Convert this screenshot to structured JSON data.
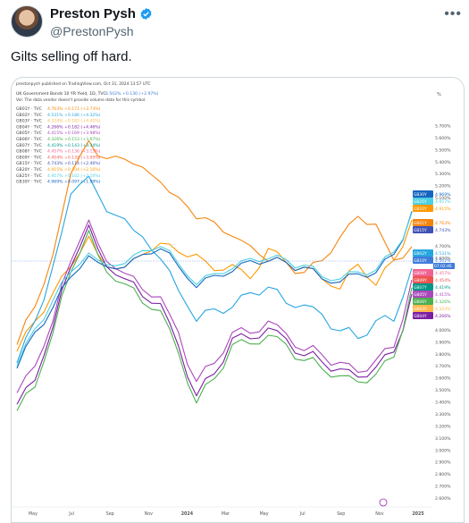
{
  "tweet": {
    "display_name": "Preston Pysh",
    "handle": "@PrestonPysh",
    "text": "Gilts selling off hard."
  },
  "icons": {
    "verified": "verified-badge-icon",
    "more": "more-options-icon",
    "avatar": "profile-avatar"
  },
  "colors": {
    "verified": "#1d9bf0",
    "text": "#0f1419",
    "secondary": "#536471"
  },
  "chart_header": {
    "published": "prestonpysh published on TradingView.com, Oct 31, 2024 13:57 UTC",
    "title": "UK Government Bonds 10 YR Yield, 1D, TVC",
    "title_value": "4.502% +0.130 (+2.97%)",
    "vol_note": "Vol: The data vendor doesn't provide volume data for this symbol."
  },
  "chart_data": {
    "type": "line",
    "ylabel": "%",
    "ylim": [
      2.6,
      5.8
    ],
    "yticks": [
      "5.700%",
      "5.600%",
      "5.500%",
      "5.400%",
      "5.300%",
      "5.200%",
      "5.100%",
      "4.700%",
      "4.600%",
      "4.000%",
      "3.900%",
      "3.800%",
      "3.700%",
      "3.600%",
      "3.500%",
      "3.400%",
      "3.300%",
      "3.200%",
      "3.100%",
      "3.000%",
      "2.900%",
      "2.800%",
      "2.700%",
      "2.600%"
    ],
    "xticks": [
      "May",
      "Jul",
      "Sep",
      "Nov",
      "2024",
      "Mar",
      "May",
      "Jul",
      "Sep",
      "Nov",
      "2025"
    ],
    "legend": [
      {
        "name": "GB01Y · TVC",
        "value": "4.763%  +0.171 (+3.73%)",
        "color": "#f5840c"
      },
      {
        "name": "GB02Y · TVC",
        "value": "4.531%  +0.186 (+4.32%)",
        "color": "#26a6e0"
      },
      {
        "name": "GB03Y · TVC",
        "value": "4.324%  +0.183 (+4.42%)",
        "color": "#ffb74d"
      },
      {
        "name": "GB04Y · TVC",
        "value": "4.266%  +0.182 (+4.46%)",
        "color": "#7b1fa2"
      },
      {
        "name": "GB05Y · TVC",
        "value": "4.415%  +0.169 (+3.98%)",
        "color": "#ab47bc"
      },
      {
        "name": "GB06Y · TVC",
        "value": "4.326%  +0.153 (+3.67%)",
        "color": "#4caf50"
      },
      {
        "name": "GB07Y · TVC",
        "value": "4.419%  +0.143 (+3.34%)",
        "color": "#009688"
      },
      {
        "name": "GB08Y · TVC",
        "value": "4.457%  +0.136 (+3.15%)",
        "color": "#f06292"
      },
      {
        "name": "GB09Y · TVC",
        "value": "4.454%  +0.132 (+3.05%)",
        "color": "#ef5350"
      },
      {
        "name": "GB15Y · TVC",
        "value": "4.743%  +0.114 (+2.46%)",
        "color": "#3f51b5"
      },
      {
        "name": "GB20Y · TVC",
        "value": "4.915%  +0.104 (+2.16%)",
        "color": "#ff9800"
      },
      {
        "name": "GB25Y · TVC",
        "value": "4.957%  +0.102 (+2.10%)",
        "color": "#4dd0e1"
      },
      {
        "name": "GB30Y · TVC",
        "value": "4.969%  +0.097 (+1.99%)",
        "color": "#1565c0"
      }
    ],
    "price_tags": [
      {
        "label": "GB30Y",
        "value": "4.969%",
        "color": "#1565c0"
      },
      {
        "label": "GB25Y",
        "value": "4.957%",
        "color": "#4dd0e1"
      },
      {
        "label": "GB20Y",
        "value": "4.915%",
        "color": "#ff9800"
      },
      {
        "label": "GB01Y",
        "value": "4.763%",
        "color": "#f5840c"
      },
      {
        "label": "GB15Y",
        "value": "4.743%",
        "color": "#3f51b5"
      },
      {
        "label": "GB02Y",
        "value": "4.531%",
        "color": "#26a6e0"
      },
      {
        "label": "GB10Y",
        "value": "4.502%",
        "color": "#3f7bd9"
      },
      {
        "label": "GB08Y",
        "value": "4.457%",
        "color": "#f06292"
      },
      {
        "label": "GB09Y",
        "value": "4.454%",
        "color": "#ef5350"
      },
      {
        "label": "GB07Y",
        "value": "4.419%",
        "color": "#009688"
      },
      {
        "label": "GB05Y",
        "value": "4.415%",
        "color": "#ab47bc"
      },
      {
        "label": "GB06Y",
        "value": "4.326%",
        "color": "#4caf50"
      },
      {
        "label": "GB03Y",
        "value": "4.324%",
        "color": "#ffb74d"
      },
      {
        "label": "GB04Y",
        "value": "4.266%",
        "color": "#7b1fa2"
      }
    ],
    "price_tag_timer": "07:02:46",
    "series": [
      {
        "name": "GB01Y",
        "color": "#f5840c",
        "values": [
          3.9,
          4.2,
          4.6,
          5.3,
          5.55,
          5.4,
          5.45,
          5.35,
          5.2,
          5.1,
          4.95,
          4.9,
          4.75,
          4.7,
          4.6,
          4.55,
          4.45,
          4.6,
          4.75,
          4.95,
          4.85,
          4.55,
          4.72
        ]
      },
      {
        "name": "GB20Y",
        "color": "#ff9800",
        "values": [
          3.85,
          4.05,
          4.3,
          4.55,
          4.75,
          4.5,
          4.55,
          4.6,
          4.75,
          4.65,
          4.6,
          4.5,
          4.55,
          4.4,
          4.7,
          4.55,
          4.5,
          4.45,
          4.35,
          4.55,
          4.4,
          4.55,
          4.91
        ]
      },
      {
        "name": "GB02Y",
        "color": "#26a6e0",
        "values": [
          3.75,
          4.05,
          4.5,
          5.1,
          5.3,
          5.0,
          4.9,
          4.75,
          4.6,
          4.35,
          4.1,
          4.15,
          4.2,
          4.3,
          4.35,
          4.25,
          4.2,
          4.1,
          4.0,
          3.95,
          4.05,
          4.1,
          4.53
        ]
      },
      {
        "name": "GB05Y",
        "color": "#ab47bc",
        "values": [
          3.45,
          3.7,
          4.1,
          4.6,
          4.9,
          4.55,
          4.5,
          4.35,
          4.25,
          3.95,
          3.55,
          3.75,
          3.95,
          4.0,
          4.05,
          3.95,
          3.85,
          3.8,
          3.7,
          3.65,
          3.75,
          3.85,
          4.41
        ]
      },
      {
        "name": "GB04Y",
        "color": "#7b1fa2",
        "values": [
          3.35,
          3.6,
          4.05,
          4.55,
          4.85,
          4.5,
          4.45,
          4.3,
          4.2,
          3.85,
          3.45,
          3.65,
          3.9,
          3.95,
          4.0,
          3.9,
          3.8,
          3.75,
          3.65,
          3.6,
          3.7,
          3.8,
          4.27
        ]
      },
      {
        "name": "GB06Y",
        "color": "#4caf50",
        "values": [
          3.3,
          3.55,
          4.0,
          4.5,
          4.8,
          4.45,
          4.4,
          4.25,
          4.15,
          3.8,
          3.4,
          3.6,
          3.85,
          3.9,
          3.95,
          3.85,
          3.75,
          3.7,
          3.6,
          3.55,
          3.65,
          3.75,
          4.33
        ]
      },
      {
        "name": "GB30Y",
        "color": "#1565c0",
        "values": [
          3.7,
          3.95,
          4.2,
          4.45,
          4.6,
          4.5,
          4.55,
          4.6,
          4.7,
          4.55,
          4.35,
          4.45,
          4.5,
          4.55,
          4.6,
          4.55,
          4.5,
          4.45,
          4.4,
          4.45,
          4.5,
          4.6,
          4.97
        ]
      },
      {
        "name": "GB25Y",
        "color": "#4dd0e1",
        "values": [
          3.72,
          3.98,
          4.25,
          4.5,
          4.62,
          4.52,
          4.58,
          4.63,
          4.72,
          4.57,
          4.37,
          4.47,
          4.52,
          4.57,
          4.62,
          4.57,
          4.52,
          4.47,
          4.42,
          4.47,
          4.52,
          4.62,
          4.96
        ]
      }
    ]
  }
}
